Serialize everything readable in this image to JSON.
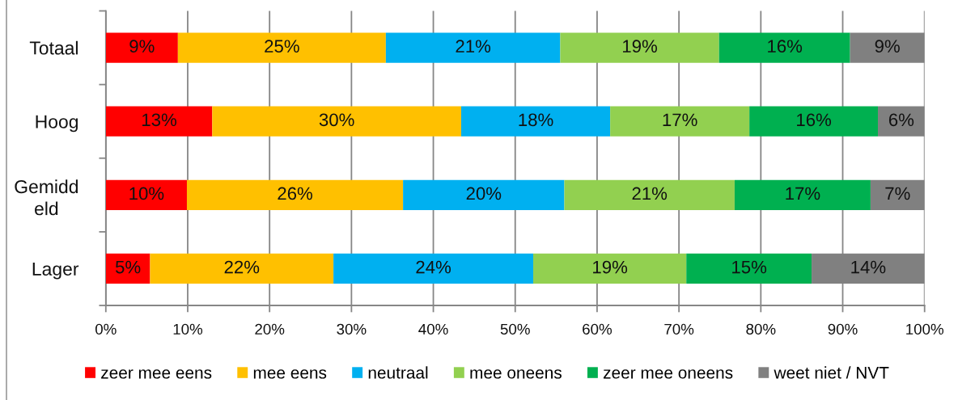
{
  "chart_data": {
    "type": "bar",
    "orientation": "horizontal",
    "stacked": true,
    "categories": [
      "Totaal",
      "Hoog",
      "Gemiddeld",
      "Lager"
    ],
    "series": [
      {
        "name": "zeer mee eens",
        "color": "#ff0000",
        "values": [
          8.8,
          13.0,
          9.9,
          5.4
        ],
        "value_labels": [
          "9%",
          "13%",
          "10%",
          "5%"
        ]
      },
      {
        "name": "mee eens",
        "color": "#ffc000",
        "values": [
          25.4,
          30.4,
          26.4,
          22.4
        ],
        "value_labels": [
          "25%",
          "30%",
          "26%",
          "22%"
        ]
      },
      {
        "name": "neutraal",
        "color": "#00b0f0",
        "values": [
          21.3,
          18.2,
          19.7,
          24.4
        ],
        "value_labels": [
          "21%",
          "18%",
          "20%",
          "24%"
        ]
      },
      {
        "name": "mee oneens",
        "color": "#92d050",
        "values": [
          19.4,
          17.0,
          20.8,
          18.7
        ],
        "value_labels": [
          "19%",
          "17%",
          "21%",
          "19%"
        ]
      },
      {
        "name": "zeer mee oneens",
        "color": "#00b050",
        "values": [
          16.0,
          15.7,
          16.6,
          15.3
        ],
        "value_labels": [
          "16%",
          "16%",
          "17%",
          "15%"
        ]
      },
      {
        "name": "weet niet / NVT",
        "color": "#808080",
        "values": [
          9.1,
          5.7,
          6.6,
          13.8
        ],
        "value_labels": [
          "9%",
          "6%",
          "7%",
          "14%"
        ]
      }
    ],
    "xlim": [
      0,
      100
    ],
    "xticks": [
      {
        "value": 0,
        "label": "0%"
      },
      {
        "value": 10,
        "label": "10%"
      },
      {
        "value": 20,
        "label": "20%"
      },
      {
        "value": 30,
        "label": "30%"
      },
      {
        "value": 40,
        "label": "40%"
      },
      {
        "value": 50,
        "label": "50%"
      },
      {
        "value": 60,
        "label": "60%"
      },
      {
        "value": 70,
        "label": "70%"
      },
      {
        "value": 80,
        "label": "80%"
      },
      {
        "value": 90,
        "label": "90%"
      },
      {
        "value": 100,
        "label": "100%"
      }
    ],
    "grid": "x",
    "legend": "bottom"
  }
}
